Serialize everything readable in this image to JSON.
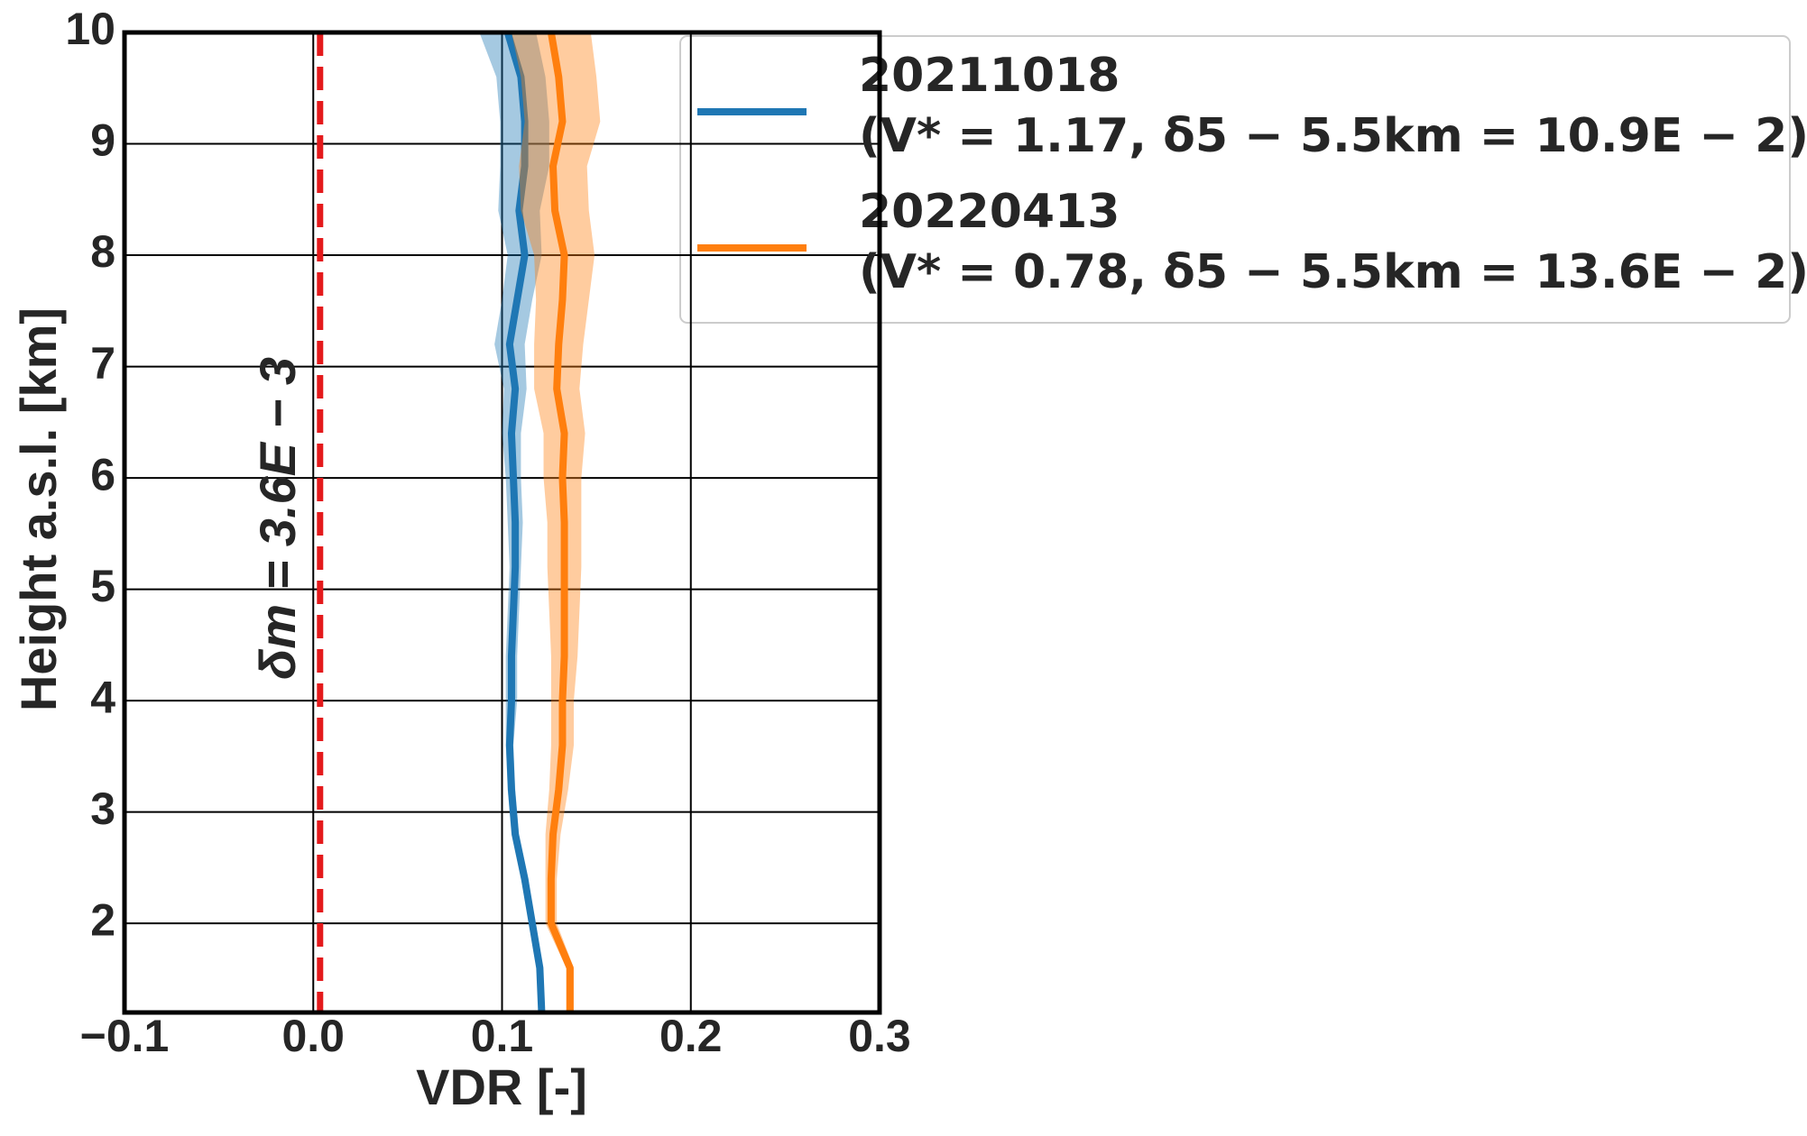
{
  "chart_data": {
    "type": "profile",
    "xlabel": "VDR [-]",
    "ylabel": "Height a.s.l. [km]",
    "xlim": [
      -0.1,
      0.3
    ],
    "xticks": [
      {
        "value": -0.1,
        "label": "−0.1"
      },
      {
        "value": 0,
        "label": "0.0"
      },
      0.1,
      0.2,
      0.3
    ],
    "ylim": [
      1.2,
      10
    ],
    "yticks": [
      2,
      3,
      4,
      5,
      6,
      7,
      8,
      9,
      10
    ],
    "grid": true,
    "heights": [
      1.2,
      1.6,
      2.0,
      2.4,
      2.8,
      3.2,
      3.6,
      4.0,
      4.4,
      4.8,
      5.2,
      5.6,
      6.0,
      6.4,
      6.8,
      7.2,
      7.6,
      8.0,
      8.4,
      8.8,
      9.2,
      9.6,
      10.0
    ],
    "series": [
      {
        "name": "20211018",
        "note": "(V* = 1.17, δ5 − 5.5km = 10.9E − 2)",
        "color": "#1f77b4",
        "values": [
          0.121,
          0.12,
          0.116,
          0.112,
          0.107,
          0.105,
          0.104,
          0.105,
          0.105,
          0.106,
          0.107,
          0.107,
          0.106,
          0.105,
          0.107,
          0.104,
          0.108,
          0.112,
          0.109,
          0.112,
          0.112,
          0.11,
          0.103
        ],
        "lower": [
          0.12,
          0.119,
          0.115,
          0.11,
          0.105,
          0.103,
          0.102,
          0.102,
          0.102,
          0.103,
          0.104,
          0.103,
          0.102,
          0.1,
          0.101,
          0.096,
          0.1,
          0.103,
          0.098,
          0.099,
          0.099,
          0.097,
          0.088
        ],
        "upper": [
          0.122,
          0.121,
          0.117,
          0.114,
          0.109,
          0.107,
          0.106,
          0.108,
          0.108,
          0.109,
          0.11,
          0.111,
          0.11,
          0.11,
          0.113,
          0.112,
          0.116,
          0.121,
          0.12,
          0.125,
          0.125,
          0.123,
          0.118
        ]
      },
      {
        "name": "20220413",
        "note": "(V* = 0.78, δ5 − 5.5km = 13.6E − 2)",
        "color": "#ff7f0e",
        "values": [
          0.136,
          0.136,
          0.126,
          0.126,
          0.127,
          0.13,
          0.132,
          0.132,
          0.133,
          0.133,
          0.133,
          0.133,
          0.132,
          0.133,
          0.129,
          0.13,
          0.132,
          0.133,
          0.128,
          0.127,
          0.132,
          0.13,
          0.126
        ],
        "lower": [
          0.134,
          0.134,
          0.123,
          0.123,
          0.123,
          0.125,
          0.126,
          0.126,
          0.126,
          0.125,
          0.124,
          0.124,
          0.122,
          0.122,
          0.117,
          0.117,
          0.118,
          0.117,
          0.11,
          0.109,
          0.112,
          0.11,
          0.105
        ],
        "upper": [
          0.138,
          0.138,
          0.129,
          0.129,
          0.131,
          0.135,
          0.138,
          0.138,
          0.14,
          0.141,
          0.142,
          0.142,
          0.142,
          0.144,
          0.141,
          0.143,
          0.146,
          0.149,
          0.146,
          0.145,
          0.152,
          0.15,
          0.147
        ]
      }
    ],
    "vline": {
      "value": 0.0036,
      "color": "#e41a1c",
      "label": "δm = 3.6E − 3"
    }
  }
}
